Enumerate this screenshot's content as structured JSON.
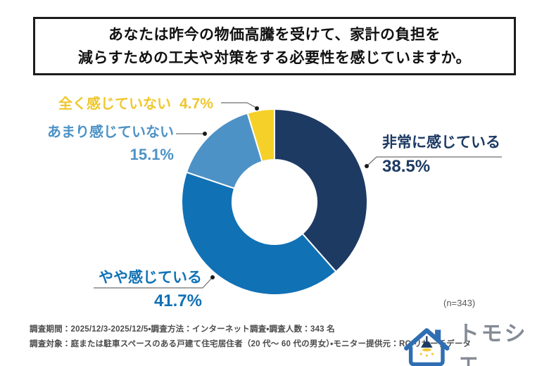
{
  "title": {
    "line1": "あなたは昨今の物価高騰を受けて、家計の負担を",
    "line2": "減らすための工夫や対策をする必要性を感じていますか。"
  },
  "chart_data": {
    "type": "pie",
    "subtype": "donut",
    "title": "あなたは昨今の物価高騰を受けて、家計の負担を減らすための工夫や対策をする必要性を感じていますか。",
    "categories": [
      "非常に感じている",
      "やや感じている",
      "あまり感じていない",
      "全く感じていない"
    ],
    "values": [
      38.5,
      41.7,
      15.1,
      4.7
    ],
    "display_values": [
      "38.5%",
      "41.7%",
      "15.1%",
      "4.7%"
    ],
    "unit": "%",
    "colors": [
      "#1d3a63",
      "#1171b5",
      "#4d92c6",
      "#f5d028"
    ],
    "start_angle_deg": 0,
    "direction": "clockwise",
    "legend_position": "none",
    "labels_outside": true,
    "sample_label": "(n=343)",
    "n": 343
  },
  "footer": {
    "line1": "調査期間：2025/12/3-2025/12/5・調査方法：インターネット調査・調査人数：343 名",
    "line2": "調査対象：庭または駐車スペースのある戸建て住宅居住者（20 代～ 60 代の男女）・モニター提供元：RC リサーチデータ"
  },
  "logo": {
    "text": "トモシエ",
    "icon": "house-pendant-lamp-icon",
    "colors": {
      "house": "#2f6eb3",
      "lamp": "#1d3a63",
      "light": "#f5c832",
      "text": "#848b95"
    }
  }
}
